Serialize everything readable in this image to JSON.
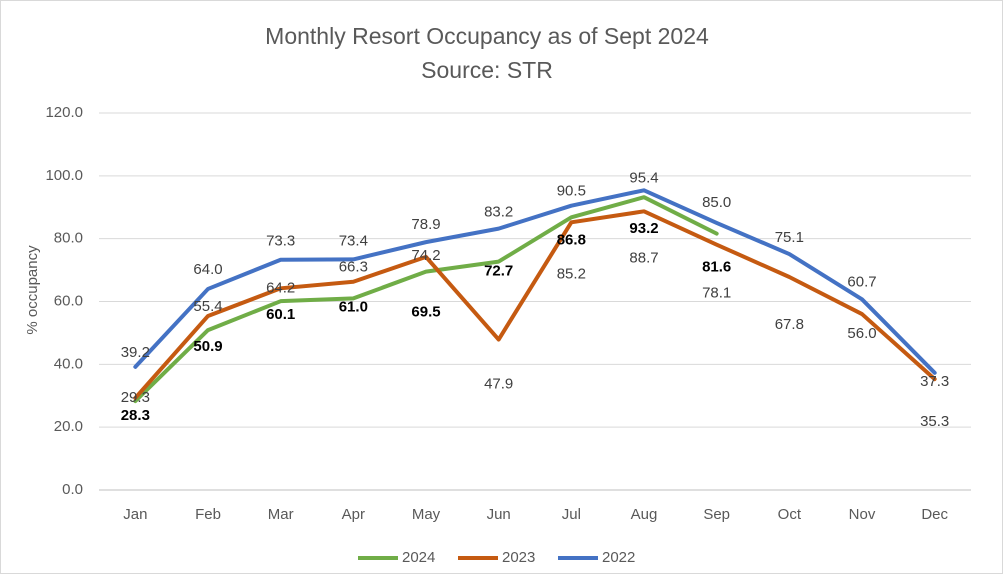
{
  "chart_data": {
    "type": "line",
    "title": "Monthly Resort Occupancy as of Sept 2024",
    "subtitle": "Source: STR",
    "y_label": "% occupancy",
    "categories": [
      "Jan",
      "Feb",
      "Mar",
      "Apr",
      "May",
      "Jun",
      "Jul",
      "Aug",
      "Sep",
      "Oct",
      "Nov",
      "Dec"
    ],
    "series": [
      {
        "name": "2024",
        "color": "#70ad47",
        "values": [
          28.3,
          50.9,
          60.1,
          61.0,
          69.5,
          72.7,
          86.8,
          93.2,
          81.6,
          null,
          null,
          null
        ],
        "value_labels": [
          "28.3",
          "50.9",
          "60.1",
          "61.0",
          "69.5",
          "72.7",
          "86.8",
          "93.2",
          "81.6",
          null,
          null,
          null
        ]
      },
      {
        "name": "2023",
        "color": "#c55a11",
        "values": [
          29.3,
          55.4,
          64.2,
          66.3,
          74.2,
          47.9,
          85.2,
          88.7,
          78.1,
          67.8,
          56.0,
          35.3
        ],
        "value_labels": [
          "29.3",
          "55.4",
          "64.2",
          "66.3",
          "74.2",
          "47.9",
          "85.2",
          "88.7",
          "78.1",
          "67.8",
          "56.0",
          "35.3"
        ]
      },
      {
        "name": "2022",
        "color": "#4472c4",
        "values": [
          39.2,
          64.0,
          73.3,
          73.4,
          78.9,
          83.2,
          90.5,
          95.4,
          85.0,
          75.1,
          60.7,
          37.3
        ],
        "value_labels": [
          "39.2",
          "64.0",
          "73.3",
          "73.4",
          "78.9",
          "83.2",
          "90.5",
          "95.4",
          "85.0",
          "75.1",
          "60.7",
          "37.3"
        ]
      }
    ],
    "ylim": [
      0,
      120
    ],
    "yticks": [
      {
        "value": 0,
        "label": "0.0"
      },
      {
        "value": 20,
        "label": "20.0"
      },
      {
        "value": 40,
        "label": "40.0"
      },
      {
        "value": 60,
        "label": "60.0"
      },
      {
        "value": 80,
        "label": "80.0"
      },
      {
        "value": 100,
        "label": "100.0"
      },
      {
        "value": 120,
        "label": "120.0"
      }
    ],
    "grid": true,
    "legend": "bottom"
  }
}
